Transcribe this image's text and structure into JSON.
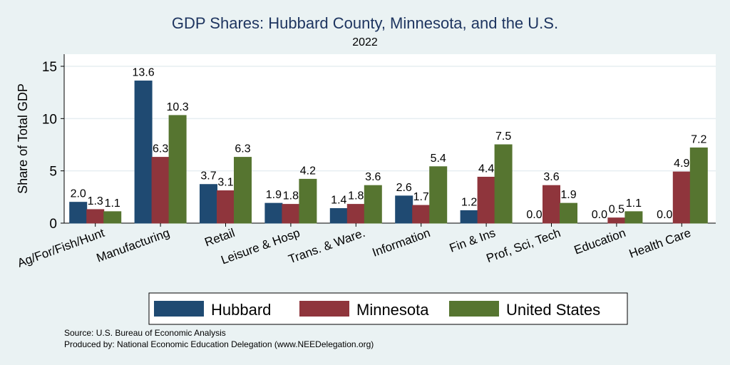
{
  "chart_data": {
    "type": "bar",
    "title": "GDP Shares: Hubbard County, Minnesota, and the U.S.",
    "subtitle": "2022",
    "ylabel": "Share of Total GDP",
    "xlabel": "",
    "ylim": [
      0,
      16
    ],
    "yticks": [
      0,
      5,
      10,
      15
    ],
    "grid": true,
    "legend_position": "bottom",
    "categories": [
      "Ag/For/Fish/Hunt",
      "Manufacturing",
      "Retail",
      "Leisure & Hosp",
      "Trans. & Ware.",
      "Information",
      "Fin & Ins",
      "Prof, Sci, Tech",
      "Education",
      "Health Care"
    ],
    "series": [
      {
        "name": "Hubbard",
        "color": "#1f4a72",
        "values": [
          2.0,
          13.6,
          3.7,
          1.9,
          1.4,
          2.6,
          1.2,
          0.0,
          0.0,
          0.0
        ]
      },
      {
        "name": "Minnesota",
        "color": "#8f353c",
        "values": [
          1.3,
          6.3,
          3.1,
          1.8,
          1.8,
          1.7,
          4.4,
          3.6,
          0.5,
          4.9
        ]
      },
      {
        "name": "United States",
        "color": "#567530",
        "values": [
          1.1,
          10.3,
          6.3,
          4.2,
          3.6,
          5.4,
          7.5,
          1.9,
          1.1,
          7.2
        ]
      }
    ]
  },
  "notes": {
    "source": "Source: U.S. Bureau of Economic Analysis",
    "produced": "Produced by: National Economic Education Delegation (www.NEEDelegation.org)"
  }
}
